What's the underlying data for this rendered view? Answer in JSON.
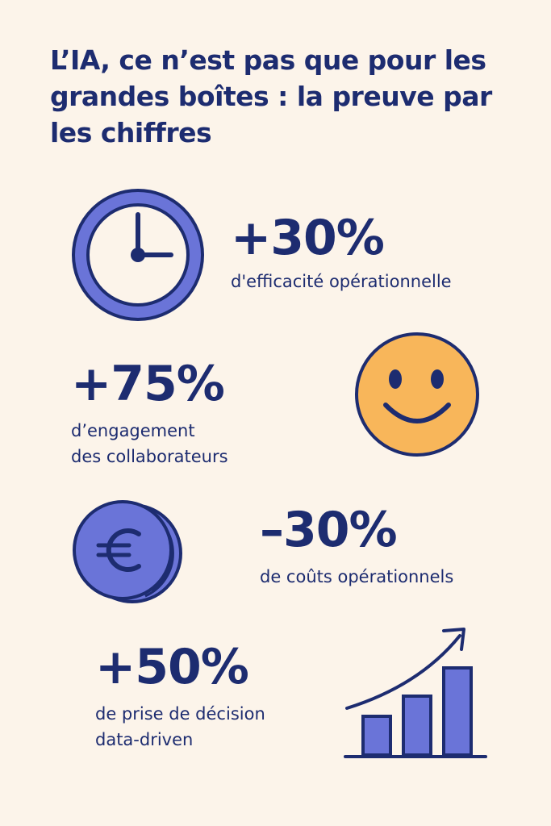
{
  "title": "L’IA, ce n’est pas que pour les grandes boîtes : la preuve par les chiffres",
  "colors": {
    "background": "#fcf4ea",
    "navy": "#1d2c70",
    "violet": "#6a74d8",
    "yellow": "#f8b65a"
  },
  "stats": [
    {
      "value": "+30%",
      "description": "d'efficacité opérationnelle",
      "icon": "clock-icon"
    },
    {
      "value": "+75%",
      "description": "d’engagement\ndes collaborateurs",
      "icon": "smiley-icon"
    },
    {
      "value": "–30%",
      "description": "de coûts opérationnels",
      "icon": "euro-coin-icon"
    },
    {
      "value": "+50%",
      "description": "de prise de décision\ndata-driven",
      "icon": "growth-chart-icon"
    }
  ]
}
